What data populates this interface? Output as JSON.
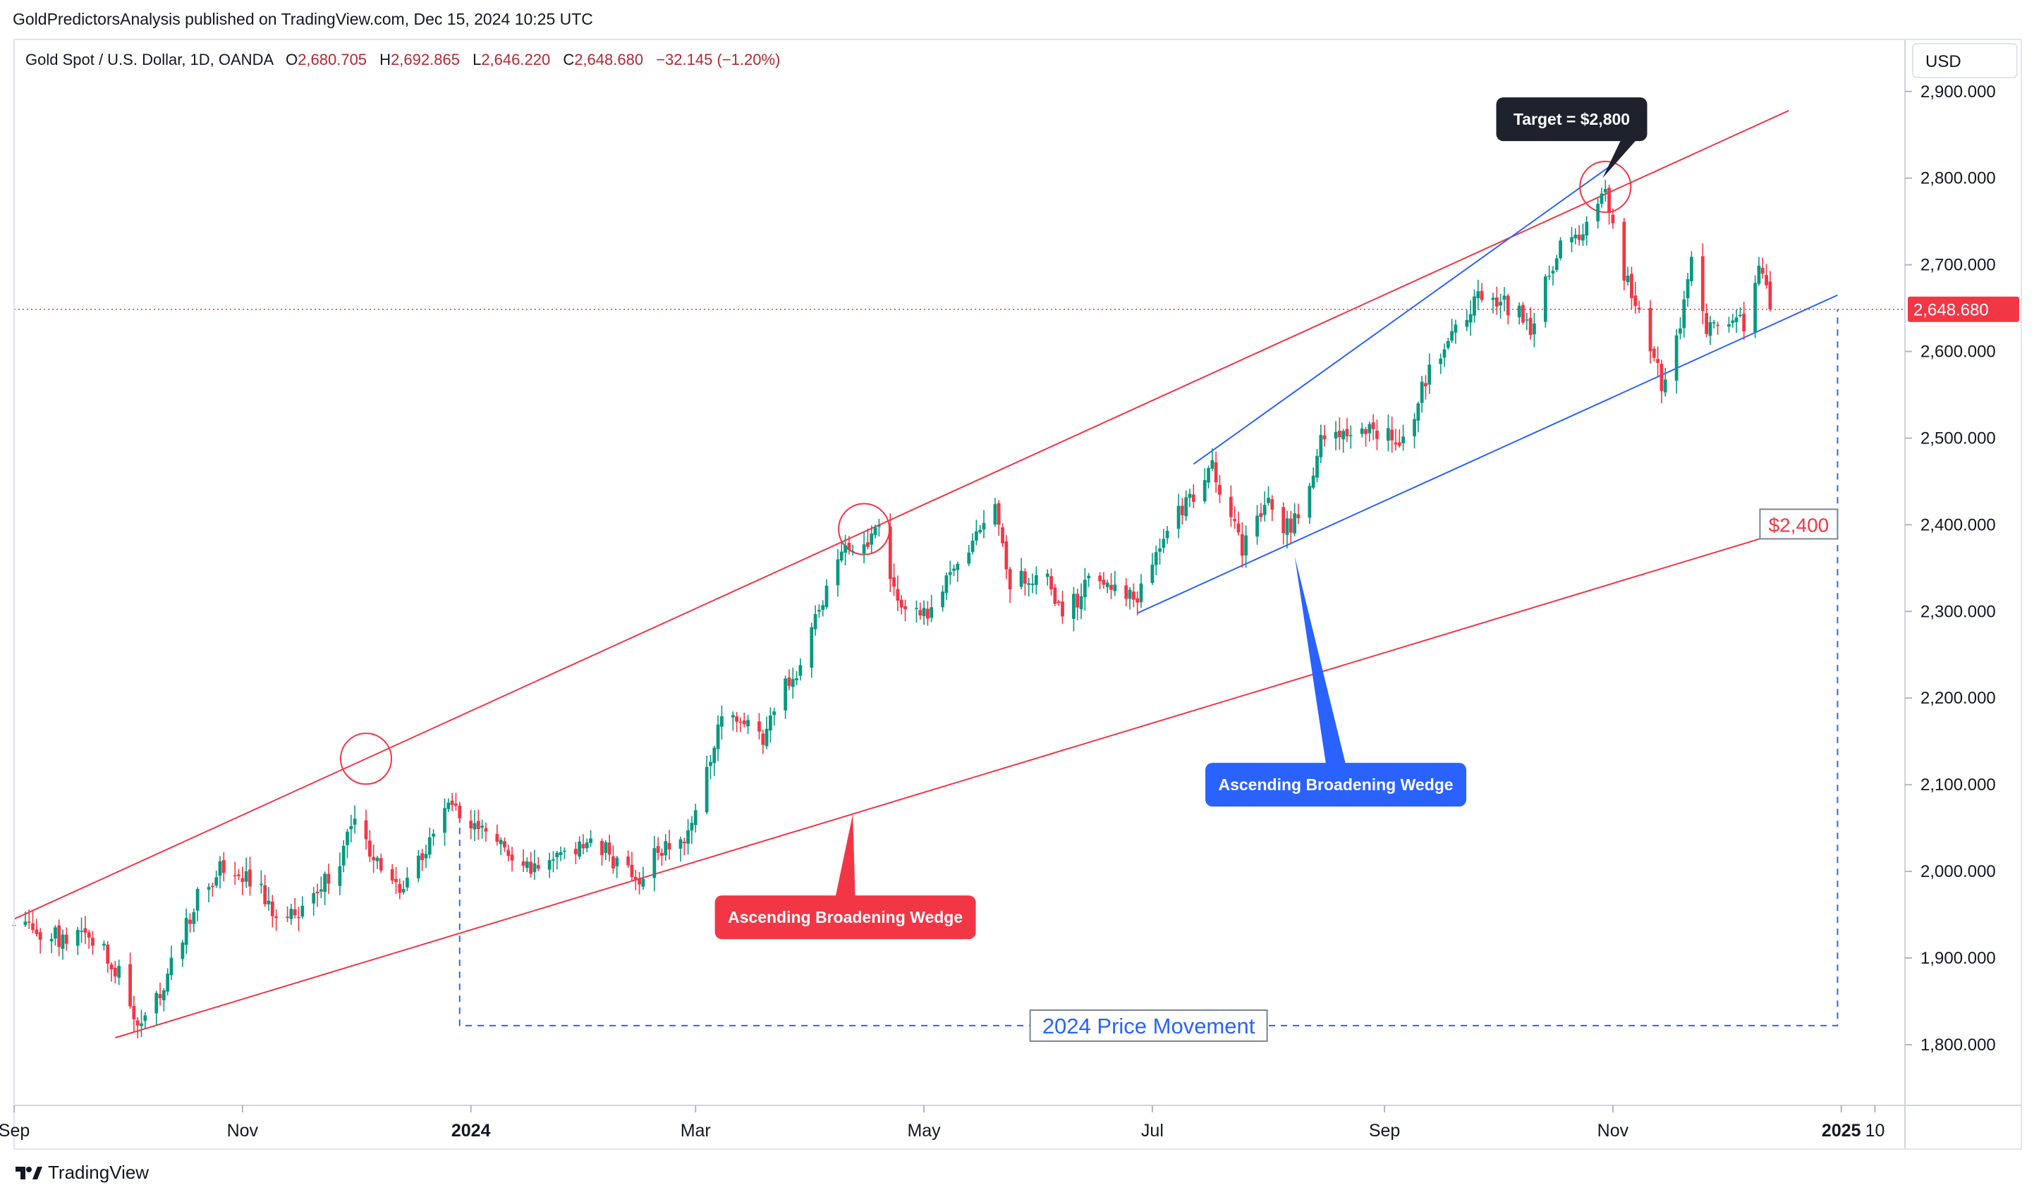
{
  "publisher_line": "GoldPredictorsAnalysis published on TradingView.com, Dec 15, 2024 10:25 UTC",
  "brand": "TradingView",
  "colors": {
    "up": "#089981",
    "down": "#f23645",
    "wedge_outer": "#f23645",
    "wedge_inner": "#2962ff",
    "callout_dark": "#1e222d",
    "callout_blue": "#2962ff",
    "callout_red": "#f23645"
  },
  "chart_data": {
    "type": "candlestick",
    "legend": {
      "symbol": "Gold Spot / U.S. Dollar, 1D, OANDA",
      "o_label": "O",
      "o_value": "2,680.705",
      "h_label": "H",
      "h_value": "2,692.865",
      "l_label": "L",
      "l_value": "2,646.220",
      "c_label": "C",
      "c_value": "2,648.680",
      "change": "−32.145 (−1.20%)"
    },
    "currency": "USD",
    "ylim": [
      1730,
      2960
    ],
    "x_range": [
      "2023-09-01",
      "2025-01-18"
    ],
    "y_ticks": [
      {
        "value": 2900,
        "label": "2,900.000"
      },
      {
        "value": 2800,
        "label": "2,800.000"
      },
      {
        "value": 2700,
        "label": "2,700.000"
      },
      {
        "value": 2600,
        "label": "2,600.000"
      },
      {
        "value": 2500,
        "label": "2,500.000"
      },
      {
        "value": 2400,
        "label": "2,400.000"
      },
      {
        "value": 2300,
        "label": "2,300.000"
      },
      {
        "value": 2200,
        "label": "2,200.000"
      },
      {
        "value": 2100,
        "label": "2,100.000"
      },
      {
        "value": 2000,
        "label": "2,000.000"
      },
      {
        "value": 1900,
        "label": "1,900.000"
      },
      {
        "value": 1800,
        "label": "1,800.000"
      }
    ],
    "x_ticks": [
      {
        "date": "2023-09-01",
        "label": "Sep",
        "bold": false
      },
      {
        "date": "2023-11-01",
        "label": "Nov",
        "bold": false
      },
      {
        "date": "2024-01-01",
        "label": "2024",
        "bold": true
      },
      {
        "date": "2024-03-01",
        "label": "Mar",
        "bold": false
      },
      {
        "date": "2024-05-01",
        "label": "May",
        "bold": false
      },
      {
        "date": "2024-07-01",
        "label": "Jul",
        "bold": false
      },
      {
        "date": "2024-09-01",
        "label": "Sep",
        "bold": false
      },
      {
        "date": "2024-11-01",
        "label": "Nov",
        "bold": false
      },
      {
        "date": "2025-01-01",
        "label": "2025",
        "bold": true
      },
      {
        "date": "2025-01-10",
        "label": "10",
        "bold": false
      }
    ],
    "last_price": {
      "value": 2648.68,
      "label": "2,648.680"
    },
    "price_path": [
      [
        "2023-09-01",
        1940
      ],
      [
        "2023-09-08",
        1930
      ],
      [
        "2023-09-15",
        1920
      ],
      [
        "2023-09-22",
        1925
      ],
      [
        "2023-09-29",
        1880
      ],
      [
        "2023-10-04",
        1820
      ],
      [
        "2023-10-06",
        1832
      ],
      [
        "2023-10-11",
        1870
      ],
      [
        "2023-10-16",
        1920
      ],
      [
        "2023-10-20",
        1980
      ],
      [
        "2023-10-27",
        2005
      ],
      [
        "2023-11-03",
        1990
      ],
      [
        "2023-11-13",
        1940
      ],
      [
        "2023-11-20",
        1980
      ],
      [
        "2023-11-27",
        2010
      ],
      [
        "2023-12-01",
        2070
      ],
      [
        "2023-12-04",
        2030
      ],
      [
        "2023-12-08",
        2000
      ],
      [
        "2023-12-13",
        1980
      ],
      [
        "2023-12-20",
        2030
      ],
      [
        "2023-12-27",
        2078
      ],
      [
        "2024-01-05",
        2045
      ],
      [
        "2024-01-17",
        2005
      ],
      [
        "2024-01-25",
        2020
      ],
      [
        "2024-02-02",
        2040
      ],
      [
        "2024-02-14",
        1990
      ],
      [
        "2024-02-20",
        2022
      ],
      [
        "2024-02-29",
        2045
      ],
      [
        "2024-03-05",
        2125
      ],
      [
        "2024-03-08",
        2180
      ],
      [
        "2024-03-19",
        2155
      ],
      [
        "2024-03-21",
        2185
      ],
      [
        "2024-03-28",
        2230
      ],
      [
        "2024-04-05",
        2330
      ],
      [
        "2024-04-12",
        2380
      ],
      [
        "2024-04-19",
        2390
      ],
      [
        "2024-04-23",
        2320
      ],
      [
        "2024-05-02",
        2300
      ],
      [
        "2024-05-10",
        2350
      ],
      [
        "2024-05-20",
        2420
      ],
      [
        "2024-05-24",
        2335
      ],
      [
        "2024-06-03",
        2340
      ],
      [
        "2024-06-07",
        2295
      ],
      [
        "2024-06-14",
        2330
      ],
      [
        "2024-06-21",
        2320
      ],
      [
        "2024-06-27",
        2315
      ],
      [
        "2024-07-05",
        2390
      ],
      [
        "2024-07-17",
        2470
      ],
      [
        "2024-07-25",
        2370
      ],
      [
        "2024-07-31",
        2430
      ],
      [
        "2024-08-07",
        2390
      ],
      [
        "2024-08-16",
        2505
      ],
      [
        "2024-08-23",
        2510
      ],
      [
        "2024-09-06",
        2500
      ],
      [
        "2024-09-13",
        2575
      ],
      [
        "2024-09-20",
        2620
      ],
      [
        "2024-09-26",
        2665
      ],
      [
        "2024-10-03",
        2655
      ],
      [
        "2024-10-10",
        2630
      ],
      [
        "2024-10-18",
        2720
      ],
      [
        "2024-10-24",
        2735
      ],
      [
        "2024-10-30",
        2785
      ],
      [
        "2024-11-01",
        2740
      ],
      [
        "2024-11-06",
        2660
      ],
      [
        "2024-11-12",
        2600
      ],
      [
        "2024-11-14",
        2565
      ],
      [
        "2024-11-18",
        2610
      ],
      [
        "2024-11-22",
        2710
      ],
      [
        "2024-11-26",
        2630
      ],
      [
        "2024-12-02",
        2640
      ],
      [
        "2024-12-06",
        2635
      ],
      [
        "2024-12-10",
        2695
      ],
      [
        "2024-12-12",
        2680
      ],
      [
        "2024-12-13",
        2648.68
      ]
    ],
    "lines": [
      {
        "name": "outer-wedge-upper",
        "color": "#f23645",
        "from": [
          "2023-09-01",
          1945
        ],
        "to": [
          "2024-12-18",
          2878
        ]
      },
      {
        "name": "outer-wedge-lower",
        "color": "#f23645",
        "from": [
          "2023-09-28",
          1808
        ],
        "to": [
          "2024-12-15",
          2390
        ]
      },
      {
        "name": "inner-wedge-upper",
        "color": "#2962ff",
        "from": [
          "2024-07-12",
          2470
        ],
        "to": [
          "2024-10-31",
          2813
        ]
      },
      {
        "name": "inner-wedge-lower",
        "color": "#2962ff",
        "from": [
          "2024-06-27",
          2298
        ],
        "to": [
          "2024-12-31",
          2665
        ]
      }
    ],
    "circles": [
      {
        "name": "top-circle-dec-2023",
        "date": "2023-12-04",
        "value": 2130
      },
      {
        "name": "top-circle-apr-2024",
        "date": "2024-04-15",
        "value": 2395
      },
      {
        "name": "top-circle-oct-2024",
        "date": "2024-10-30",
        "value": 2790
      }
    ],
    "price_range_box": {
      "from": [
        "2023-12-29",
        1822
      ],
      "to": [
        "2024-12-31",
        2648.68
      ]
    },
    "annotations": {
      "target": "Target = $2,800",
      "level": "$2,400",
      "blue_wedge": "Ascending Broadening Wedge",
      "red_wedge": "Ascending Broadening Wedge",
      "range": "2024 Price Movement"
    }
  }
}
